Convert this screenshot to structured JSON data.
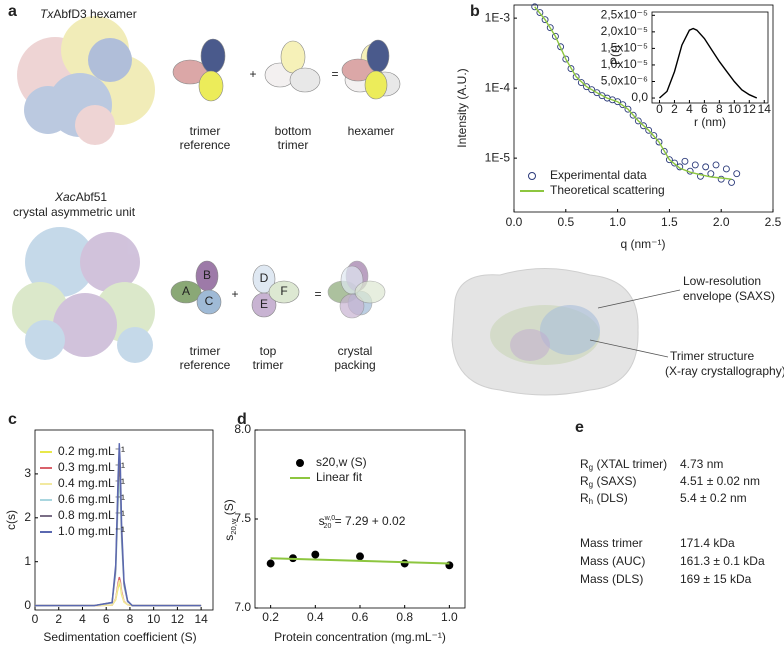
{
  "panel_a": {
    "label": "a",
    "top": {
      "title": {
        "italic": "Tx",
        "rest": "AbfD3 hexamer"
      },
      "items": [
        [
          "trimer",
          "reference"
        ],
        [
          "bottom",
          "trimer"
        ],
        [
          "hexamer"
        ]
      ]
    },
    "operators": [
      "+",
      "="
    ],
    "bottom": {
      "title": {
        "italic": "Xac",
        "rest": "Abf51"
      },
      "subtitle": "crystal asymmetric unit",
      "letters": [
        "A",
        "B",
        "C",
        "D",
        "E",
        "F"
      ],
      "items": [
        [
          "trimer",
          "reference"
        ],
        [
          "top",
          "trimer"
        ],
        [
          "crystal",
          "packing"
        ]
      ]
    }
  },
  "panel_b": {
    "label": "b",
    "annotations": [
      [
        "Low-resolution",
        "envelope (SAXS)"
      ],
      [
        "Trimer structure",
        "(X-ray crystallography)"
      ]
    ]
  },
  "panel_c": {
    "label": "c"
  },
  "panel_d": {
    "label": "d"
  },
  "panel_e": {
    "label": "e",
    "rows": [
      {
        "main": "R",
        "sub": "g",
        "rest": " (XTAL trimer)",
        "value": "4.73 nm"
      },
      {
        "main": "R",
        "sub": "g",
        "rest": " (SAXS)",
        "value": "4.51 ± 0.02 nm"
      },
      {
        "main": "R",
        "sub": "h",
        "rest": " (DLS)",
        "value": "5.4 ± 0.2 nm"
      }
    ],
    "mass_rows": [
      {
        "label": "Mass trimer",
        "value": "171.4 kDa"
      },
      {
        "label": "Mass (AUC)",
        "value": "161.3 ± 0.1 kDa"
      },
      {
        "label": "Mass (DLS)",
        "value": "169 ± 15 kDa"
      }
    ]
  },
  "chart_data": [
    {
      "type": "scatter",
      "xlabel": "q (nm⁻¹)",
      "ylabel": "Intensity (A.U.)",
      "ylog": true,
      "xlim": [
        0,
        2.5
      ],
      "ylim": [
        1.7e-06,
        0.00154
      ],
      "xticks": [
        {
          "value": 0,
          "label": "0.0"
        },
        0.5,
        {
          "value": 1,
          "label": "1.0"
        },
        1.5,
        {
          "value": 2,
          "label": "2.0"
        },
        2.5
      ],
      "yticks": [
        {
          "value": 1e-05,
          "label": "1E-5"
        },
        {
          "value": 0.0001,
          "label": "1E-4"
        },
        {
          "value": 0.001,
          "label": "1E-3"
        }
      ],
      "series": [
        {
          "name": "Experimental data",
          "color": "#2b3a7a",
          "style": "marker",
          "marker": "open",
          "x": [
            0.2,
            0.25,
            0.3,
            0.35,
            0.4,
            0.45,
            0.5,
            0.55,
            0.6,
            0.65,
            0.7,
            0.75,
            0.8,
            0.85,
            0.9,
            0.95,
            1.0,
            1.05,
            1.1,
            1.15,
            1.2,
            1.25,
            1.3,
            1.35,
            1.4,
            1.45,
            1.5,
            1.55,
            1.6,
            1.65,
            1.7,
            1.75,
            1.8,
            1.85,
            1.9,
            1.95,
            2.0,
            2.05,
            2.1,
            2.15
          ],
          "values": [
            0.00145,
            0.0012,
            0.00095,
            0.00073,
            0.00055,
            0.00039,
            0.00026,
            0.00019,
            0.000145,
            0.00012,
            0.000105,
            9.5e-05,
            8.6e-05,
            7.8e-05,
            7.2e-05,
            6.8e-05,
            6.4e-05,
            5.8e-05,
            5e-05,
            4.1e-05,
            3.4e-05,
            2.9e-05,
            2.5e-05,
            2.1e-05,
            1.7e-05,
            1.25e-05,
            9.5e-06,
            8.5e-06,
            7.5e-06,
            9e-06,
            6.5e-06,
            8e-06,
            5.5e-06,
            7.5e-06,
            6e-06,
            8e-06,
            5e-06,
            7e-06,
            4.5e-06,
            6e-06
          ]
        },
        {
          "name": "Theoretical scattering",
          "color": "#8dc63f",
          "style": "line",
          "x": [
            0.2,
            0.3,
            0.4,
            0.5,
            0.6,
            0.7,
            0.8,
            0.9,
            1.0,
            1.1,
            1.2,
            1.3,
            1.4,
            1.5,
            1.6,
            1.7,
            1.8,
            1.9,
            2.0,
            2.1
          ],
          "values": [
            0.00145,
            0.00095,
            0.00055,
            0.00026,
            0.000145,
            0.000105,
            8.6e-05,
            7.2e-05,
            6.4e-05,
            5e-05,
            3.4e-05,
            2.5e-05,
            1.7e-05,
            9.5e-06,
            7.2e-06,
            6.3e-06,
            5.8e-06,
            5.4e-06,
            5.2e-06,
            5e-06
          ]
        }
      ]
    },
    {
      "type": "line",
      "xlabel": "r (nm)",
      "ylabel": "P(r)",
      "xlim": [
        -1,
        14.5
      ],
      "ylim": [
        -1.5e-06,
        2.6e-05
      ],
      "xticks": [
        0,
        2,
        4,
        6,
        8,
        10,
        12,
        14
      ],
      "yticks": [
        {
          "value": 0,
          "label": "0,0"
        },
        {
          "value": 5e-06,
          "label": "5,0x10⁻⁶"
        },
        {
          "value": 1e-05,
          "label": "1,0x10⁻⁵"
        },
        {
          "value": 1.5e-05,
          "label": "1,5x10⁻⁵"
        },
        {
          "value": 2e-05,
          "label": "2,0x10⁻⁵"
        },
        {
          "value": 2.5e-05,
          "label": "2,5x10⁻⁵"
        }
      ],
      "series": [
        {
          "color": "#000000",
          "style": "line",
          "x": [
            0,
            1,
            2,
            3,
            4,
            4.5,
            5,
            6,
            7,
            8,
            9,
            10,
            11,
            12,
            13
          ],
          "values": [
            0,
            2e-06,
            8e-06,
            1.6e-05,
            2.05e-05,
            2.1e-05,
            2.05e-05,
            1.8e-05,
            1.45e-05,
            1.1e-05,
            8e-06,
            5e-06,
            2.5e-06,
            1e-06,
            0
          ]
        }
      ]
    },
    {
      "type": "line",
      "xlabel": "Sedimentation coefficient (S)",
      "ylabel": "c(s)",
      "xlim": [
        0,
        15
      ],
      "ylim": [
        -0.1,
        4.0
      ],
      "xticks": [
        0,
        2,
        4,
        6,
        8,
        10,
        12,
        14
      ],
      "yticks": [
        0,
        1,
        2,
        3
      ],
      "x": [
        0,
        5,
        6.5,
        6.8,
        7.0,
        7.1,
        7.2,
        7.3,
        7.5,
        7.8,
        8.2,
        14
      ],
      "series": [
        {
          "name": "0.2 mg.mL⁻¹",
          "color": "#e8e84a",
          "style": "line",
          "values": [
            0,
            0,
            0.01,
            0.13,
            0.4,
            0.5,
            0.43,
            0.25,
            0.08,
            0.02,
            0,
            0
          ]
        },
        {
          "name": "0.3 mg.mL⁻¹",
          "color": "#d9616b",
          "style": "line",
          "values": [
            0,
            0,
            0.01,
            0.16,
            0.52,
            0.65,
            0.55,
            0.33,
            0.1,
            0.02,
            0,
            0
          ]
        },
        {
          "name": "0.4 mg.mL⁻¹",
          "color": "#f2e9a0",
          "style": "line",
          "values": [
            0,
            0,
            0.01,
            0.15,
            0.46,
            0.58,
            0.49,
            0.29,
            0.09,
            0.02,
            0,
            0
          ]
        },
        {
          "name": "0.6 mg.mL⁻¹",
          "color": "#a9d6df",
          "style": "line",
          "values": [
            0,
            0,
            0.06,
            0.73,
            2.32,
            2.9,
            2.47,
            1.45,
            0.44,
            0.09,
            0,
            0
          ]
        },
        {
          "name": "0.8 mg.mL⁻¹",
          "color": "#7a6e86",
          "style": "line",
          "values": [
            0,
            0,
            0.07,
            0.83,
            2.64,
            3.3,
            2.81,
            1.65,
            0.5,
            0.1,
            0,
            0
          ]
        },
        {
          "name": "1.0 mg.mL⁻¹",
          "color": "#5a68b0",
          "style": "line",
          "values": [
            0,
            0,
            0.07,
            0.93,
            2.96,
            3.7,
            3.15,
            1.85,
            0.56,
            0.11,
            0,
            0
          ]
        }
      ]
    },
    {
      "type": "scatter",
      "xlabel": "Protein concentration (mg.mL⁻¹)",
      "ylabel": {
        "main": "s",
        "sub": "20,w",
        "rest": " (S)"
      },
      "annotation": {
        "main": "s",
        "sub": "20",
        "sup": "w,0",
        "rest": " = 7.29 + 0.02"
      },
      "xlim": [
        0.13,
        1.07
      ],
      "ylim": [
        7.0,
        8.0
      ],
      "xticks": [
        0.2,
        0.4,
        0.6,
        0.8,
        {
          "value": 1,
          "label": "1.0"
        }
      ],
      "yticks": [
        {
          "value": 7,
          "label": "7.0"
        },
        7.5,
        {
          "value": 8,
          "label": "8.0"
        }
      ],
      "series": [
        {
          "name": "s20,w (S)",
          "color": "#000000",
          "style": "marker",
          "marker": "filled",
          "x": [
            0.2,
            0.3,
            0.4,
            0.6,
            0.8,
            1.0
          ],
          "values": [
            7.25,
            7.28,
            7.3,
            7.29,
            7.25,
            7.24
          ]
        },
        {
          "name": "Linear fit",
          "color": "#8dc63f",
          "style": "line",
          "x": [
            0.2,
            1.0
          ],
          "values": [
            7.28,
            7.25
          ]
        }
      ]
    }
  ]
}
